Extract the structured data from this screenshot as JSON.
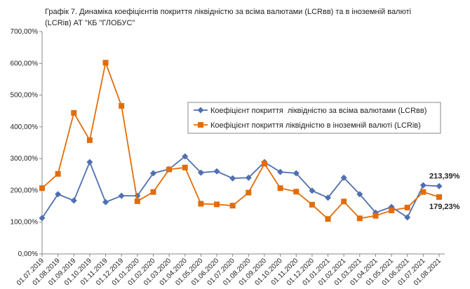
{
  "chart_data": {
    "type": "line",
    "title": [
      "Графік 7. Динаміка коефіцієнтів покриття ліквідністю за всіма валютами (LCRвв) та в іноземній валюті",
      "(LCRів) АТ \"КБ \"ГЛОБУС\""
    ],
    "categories": [
      "01.07.2019",
      "01.08.2019",
      "01.09.2019",
      "01.10.2019",
      "01.11.2019",
      "01.12.2019",
      "01.01.2020",
      "01.02.2020",
      "01.03.2020",
      "01.04.2020",
      "01.05.2020",
      "01.06.2020",
      "01.07.2020",
      "01.08.2020",
      "01.09.2020",
      "01.10.2020",
      "01.11.2020",
      "01.12.2020",
      "01.01.2021",
      "01.02.2021",
      "01.03.2021",
      "01.04.2021",
      "01.05.2021",
      "01.06.2021",
      "01.07.2021",
      "01.08.2021"
    ],
    "series": [
      {
        "name": "Коефіцієнт покриття  ліквідністю за всіма валютами (LCRвв)",
        "color": "#4f6fb0",
        "marker": "diamond",
        "values": [
          113,
          188,
          168,
          289,
          163,
          183,
          183,
          254,
          267,
          307,
          256,
          260,
          238,
          240,
          289,
          258,
          254,
          199,
          177,
          240,
          188,
          130,
          148,
          115,
          216,
          213.39
        ],
        "value_labels": [
          null,
          null,
          null,
          null,
          null,
          null,
          null,
          null,
          null,
          null,
          null,
          null,
          null,
          null,
          null,
          null,
          null,
          null,
          null,
          null,
          null,
          null,
          null,
          null,
          null,
          "213,39%"
        ]
      },
      {
        "name": "Коефіцієнт покриття ліквідністю в іноземній валюті (LCRів)",
        "color": "#e36c09",
        "marker": "square",
        "values": [
          207,
          252,
          444,
          358,
          602,
          466,
          166,
          195,
          266,
          272,
          158,
          156,
          152,
          193,
          284,
          207,
          196,
          155,
          110,
          165,
          112,
          120,
          137,
          146,
          195,
          179.23
        ],
        "value_labels": [
          null,
          null,
          null,
          null,
          null,
          null,
          null,
          null,
          null,
          null,
          null,
          null,
          null,
          null,
          null,
          null,
          null,
          null,
          null,
          null,
          null,
          null,
          null,
          null,
          null,
          "179,23%"
        ]
      }
    ],
    "ylim": [
      0,
      700
    ],
    "yticks": [
      {
        "value": 0,
        "label": "0,00%"
      },
      {
        "value": 100,
        "label": "100,00%"
      },
      {
        "value": 200,
        "label": "200,00%"
      },
      {
        "value": 300,
        "label": "300,00%"
      },
      {
        "value": 400,
        "label": "400,00%"
      },
      {
        "value": 500,
        "label": "500,00%"
      },
      {
        "value": 600,
        "label": "600,00%"
      },
      {
        "value": 700,
        "label": "700,00%"
      }
    ],
    "grid": false
  }
}
